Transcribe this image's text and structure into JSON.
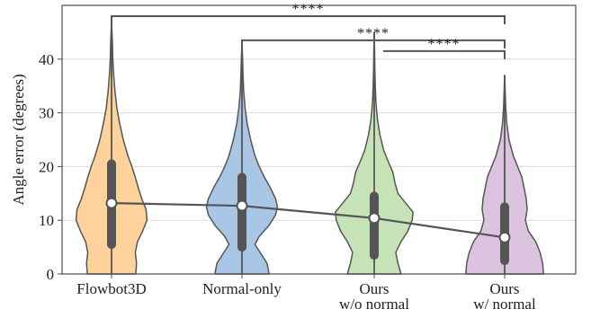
{
  "chart_data": {
    "type": "violin",
    "title": "",
    "xlabel": "",
    "ylabel": "Angle error (degrees)",
    "ylim": [
      0,
      50
    ],
    "yticks": [
      0,
      10,
      20,
      30,
      40
    ],
    "grid": "horizontal",
    "legend": "none",
    "categories": [
      {
        "lines": [
          "Flowbot3D"
        ]
      },
      {
        "lines": [
          "Normal-only"
        ]
      },
      {
        "lines": [
          "Ours",
          "w/o normal"
        ]
      },
      {
        "lines": [
          "Ours",
          "w/ normal"
        ]
      }
    ],
    "series": [
      {
        "color": "#fdd29b",
        "min": 0,
        "max": 47,
        "q1": 5.5,
        "median": 13.2,
        "q3": 20.5,
        "density": [
          [
            0,
            0.56
          ],
          [
            2,
            0.58
          ],
          [
            4,
            0.55
          ],
          [
            6,
            0.6
          ],
          [
            8,
            0.72
          ],
          [
            10,
            0.82
          ],
          [
            12,
            0.8
          ],
          [
            14,
            0.7
          ],
          [
            16,
            0.62
          ],
          [
            18,
            0.55
          ],
          [
            20,
            0.47
          ],
          [
            22,
            0.38
          ],
          [
            25,
            0.27
          ],
          [
            28,
            0.19
          ],
          [
            31,
            0.12
          ],
          [
            34,
            0.08
          ],
          [
            37,
            0.05
          ],
          [
            40,
            0.03
          ],
          [
            43,
            0.02
          ],
          [
            47,
            0.0
          ]
        ]
      },
      {
        "color": "#a9c6e6",
        "min": 0,
        "max": 43.5,
        "q1": 5,
        "median": 12.7,
        "q3": 18,
        "density": [
          [
            0,
            0.63
          ],
          [
            2,
            0.58
          ],
          [
            4,
            0.42
          ],
          [
            5.5,
            0.3
          ],
          [
            7,
            0.4
          ],
          [
            9,
            0.62
          ],
          [
            11,
            0.78
          ],
          [
            12.5,
            0.82
          ],
          [
            14,
            0.78
          ],
          [
            16,
            0.66
          ],
          [
            18,
            0.52
          ],
          [
            20,
            0.4
          ],
          [
            22,
            0.3
          ],
          [
            25,
            0.2
          ],
          [
            28,
            0.12
          ],
          [
            31,
            0.07
          ],
          [
            34,
            0.04
          ],
          [
            37,
            0.025
          ],
          [
            40,
            0.015
          ],
          [
            43.5,
            0.0
          ]
        ]
      },
      {
        "color": "#c6e3b8",
        "min": 0,
        "max": 45,
        "q1": 3.5,
        "median": 10.4,
        "q3": 14.5,
        "density": [
          [
            0,
            0.62
          ],
          [
            2,
            0.55
          ],
          [
            4,
            0.5
          ],
          [
            6,
            0.62
          ],
          [
            8,
            0.78
          ],
          [
            10,
            0.88
          ],
          [
            11.5,
            0.9
          ],
          [
            13,
            0.75
          ],
          [
            15,
            0.55
          ],
          [
            17,
            0.48
          ],
          [
            19,
            0.43
          ],
          [
            21,
            0.32
          ],
          [
            23,
            0.22
          ],
          [
            26,
            0.13
          ],
          [
            29,
            0.07
          ],
          [
            32,
            0.04
          ],
          [
            35,
            0.025
          ],
          [
            38,
            0.015
          ],
          [
            41,
            0.01
          ],
          [
            45,
            0.0
          ]
        ]
      },
      {
        "color": "#dcc4e0",
        "min": 0,
        "max": 37,
        "q1": 2.5,
        "median": 6.8,
        "q3": 12.5,
        "density": [
          [
            0,
            0.9
          ],
          [
            2,
            0.88
          ],
          [
            4,
            0.82
          ],
          [
            6,
            0.72
          ],
          [
            8,
            0.55
          ],
          [
            10,
            0.48
          ],
          [
            12,
            0.52
          ],
          [
            14,
            0.5
          ],
          [
            16,
            0.45
          ],
          [
            18,
            0.4
          ],
          [
            20,
            0.3
          ],
          [
            22,
            0.2
          ],
          [
            25,
            0.1
          ],
          [
            28,
            0.05
          ],
          [
            31,
            0.025
          ],
          [
            34,
            0.012
          ],
          [
            37,
            0.0
          ]
        ]
      }
    ],
    "significance": [
      {
        "from": 0,
        "to": 3,
        "label": "****",
        "y": 48
      },
      {
        "from": 1,
        "to": 3,
        "label": "****",
        "y": 43.5
      },
      {
        "from": 2,
        "to": 3,
        "label": "****",
        "y": 41.5
      }
    ]
  }
}
